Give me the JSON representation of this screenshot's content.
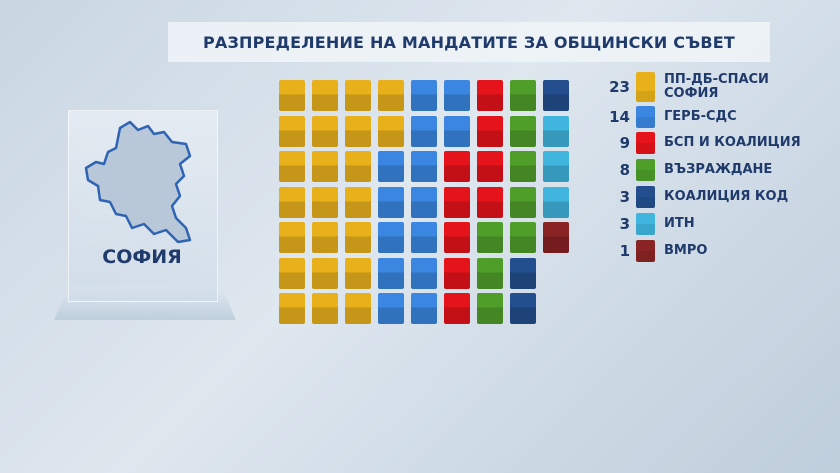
{
  "title": "РАЗПРЕДЕЛЕНИЕ НА МАНДАТИТЕ ЗА ОБЩИНСКИ СЪВЕТ",
  "city": "СОФИЯ",
  "chart_data": {
    "type": "waffle",
    "title": "РАЗПРЕДЕЛЕНИЕ НА МАНДАТИТЕ ЗА ОБЩИНСКИ СЪВЕТ",
    "total": 61,
    "grid_rows": 7,
    "fill_order": "column-wise, top to bottom, left to right",
    "legend_position": "right",
    "series": [
      {
        "name": "ПП-ДБ-СПАСИ СОФИЯ",
        "value": 23,
        "color": "#e8b11b"
      },
      {
        "name": "ГЕРБ-СДС",
        "value": 14,
        "color": "#3a86e0"
      },
      {
        "name": "БСП И КОАЛИЦИЯ",
        "value": 9,
        "color": "#e5131a"
      },
      {
        "name": "ВЪЗРАЖДАНЕ",
        "value": 8,
        "color": "#4f9e2a"
      },
      {
        "name": "КОАЛИЦИЯ КОД",
        "value": 3,
        "color": "#234f8e"
      },
      {
        "name": "ИТН",
        "value": 3,
        "color": "#40b5de"
      },
      {
        "name": "ВМРО",
        "value": 1,
        "color": "#8a2324"
      }
    ]
  }
}
